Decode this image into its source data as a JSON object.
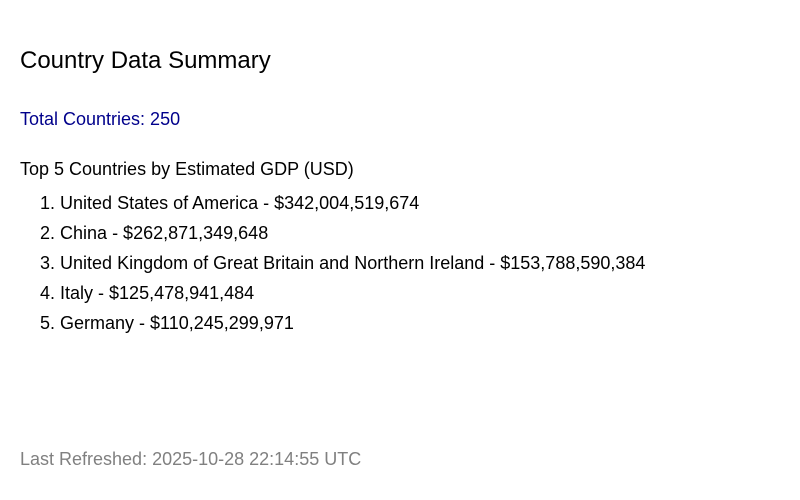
{
  "title": "Country Data Summary",
  "total_countries": "Total Countries: 250",
  "gdp_section": {
    "heading": "Top 5 Countries by Estimated GDP (USD)",
    "items": [
      {
        "rank": "1.",
        "text": "United States of America - $342,004,519,674"
      },
      {
        "rank": "2.",
        "text": "China - $262,871,349,648"
      },
      {
        "rank": "3.",
        "text": "United Kingdom of Great Britain and Northern Ireland - $153,788,590,384"
      },
      {
        "rank": "4.",
        "text": "Italy - $125,478,941,484"
      },
      {
        "rank": "5.",
        "text": "Germany - $110,245,299,971"
      }
    ]
  },
  "last_refreshed": "Last Refreshed: 2025-10-28 22:14:55 UTC",
  "colors": {
    "total_text": "#00008b",
    "footer_text": "#808080",
    "body_text": "#000000",
    "background": "#ffffff"
  }
}
